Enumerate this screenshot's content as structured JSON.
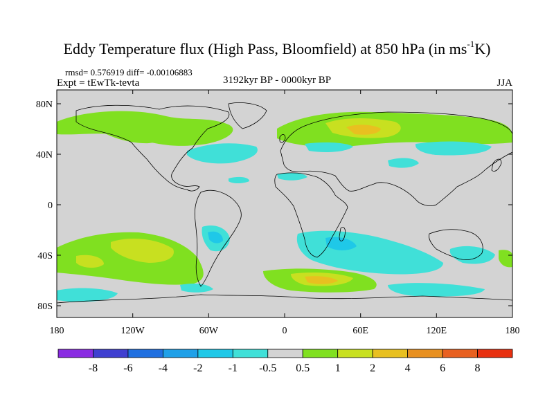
{
  "title": {
    "main": "Eddy Temperature flux (High Pass, Bloomfield) at 850 hPa (in ms",
    "sup": "-1",
    "tail": "K)"
  },
  "stats": "rmsd= 0.576919 diff= -0.00106883",
  "expt": "Expt = tEwTk-tevta",
  "period": "3192kyr BP - 0000kyr BP",
  "season": "JJA",
  "lat_labels": [
    "80N",
    "40N",
    "0",
    "40S",
    "80S"
  ],
  "lon_labels": [
    "180",
    "120W",
    "60W",
    "0",
    "60E",
    "120E",
    "180"
  ],
  "colorbar": {
    "labels": [
      "-8",
      "-6",
      "-4",
      "-2",
      "-1",
      "-0.5",
      "0.5",
      "1",
      "2",
      "4",
      "6",
      "8"
    ],
    "colors": [
      "#8a2be2",
      "#3f3fd0",
      "#1f6fe0",
      "#1fa0e8",
      "#1fc8e8",
      "#40e0d8",
      "#d3d3d3",
      "#80e020",
      "#c8e020",
      "#e8c020",
      "#e89020",
      "#e86020",
      "#e83010"
    ]
  },
  "colors": {
    "land_bg": "#d3d3d3",
    "coast": "#000000"
  }
}
